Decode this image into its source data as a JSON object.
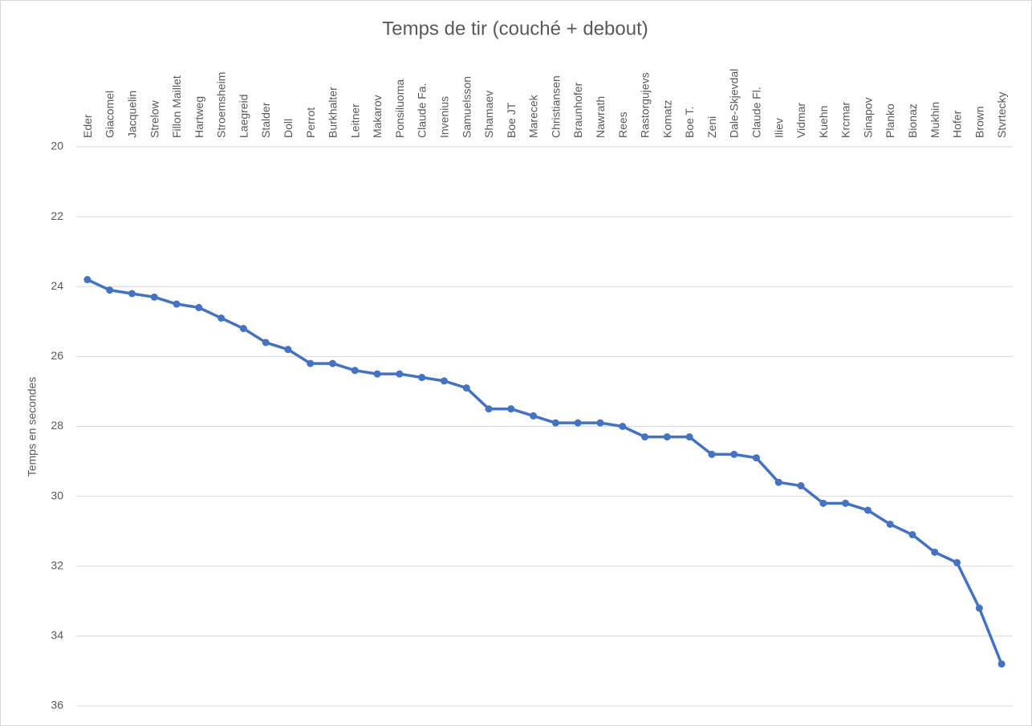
{
  "chart_data": {
    "type": "line",
    "title": "Temps de tir (couché + debout)",
    "y_label": "Temps en secondes",
    "categories": [
      "Eder",
      "Giacomel",
      "Jacquelin",
      "Strelow",
      "Fillon Maillet",
      "Hartweg",
      "Stroemsheim",
      "Laegreid",
      "Stalder",
      "Doll",
      "Perrot",
      "Burkhalter",
      "Leitner",
      "Makarov",
      "Ponsiluoma",
      "Claude Fa.",
      "Invenius",
      "Samuelsson",
      "Shamaev",
      "Boe JT",
      "Marecek",
      "Christiansen",
      "Braunhofer",
      "Nawrath",
      "Rees",
      "Rastorgujevs",
      "Komatz",
      "Boe T.",
      "Zeni",
      "Dale-Skjevdal",
      "Claude Fl.",
      "Iliev",
      "Vidmar",
      "Kuehn",
      "Krcmar",
      "Sinapov",
      "Planko",
      "Bionaz",
      "Mukhin",
      "Hofer",
      "Brown",
      "Stvrtecky"
    ],
    "series": [
      {
        "color": "#4472c4",
        "values": [
          23.8,
          24.1,
          24.2,
          24.3,
          24.5,
          24.6,
          24.9,
          25.2,
          25.6,
          25.8,
          26.2,
          26.2,
          26.4,
          26.5,
          26.5,
          26.6,
          26.7,
          26.9,
          27.5,
          27.5,
          27.7,
          27.9,
          27.9,
          27.9,
          28.0,
          28.3,
          28.3,
          28.3,
          28.8,
          28.8,
          28.9,
          29.6,
          29.7,
          30.2,
          30.2,
          30.4,
          30.8,
          31.1,
          31.6,
          31.9,
          33.2,
          34.8
        ]
      }
    ],
    "ylim": [
      20,
      36
    ],
    "y_inverted": true,
    "yticks": [
      20,
      22,
      24,
      26,
      28,
      30,
      32,
      34,
      36
    ],
    "grid": true
  }
}
